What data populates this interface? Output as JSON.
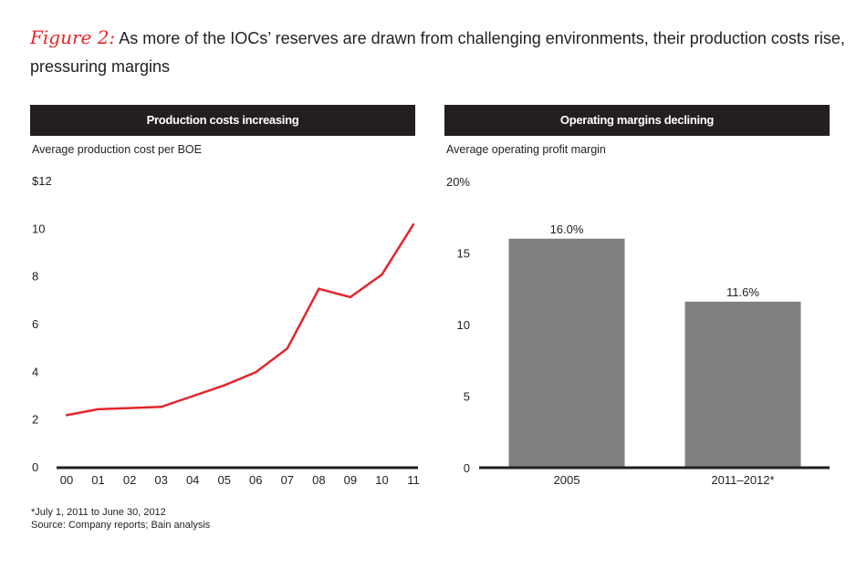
{
  "figure": {
    "label": "Figure 2:",
    "title": "As more of the IOCs’ reserves are drawn from challenging environments, their production costs rise, pressuring margins"
  },
  "chart_data": [
    {
      "type": "line",
      "header": "Production costs increasing",
      "subtitle": "Average production cost per BOE",
      "ylabel": "Average production cost per BOE",
      "x": [
        "00",
        "01",
        "02",
        "03",
        "04",
        "05",
        "06",
        "07",
        "08",
        "09",
        "10",
        "11"
      ],
      "values": [
        2.2,
        2.45,
        2.5,
        2.55,
        3.0,
        3.45,
        4.0,
        5.0,
        7.5,
        7.15,
        8.1,
        10.2
      ],
      "ylim": [
        0,
        12
      ],
      "yticks": [
        "0",
        "2",
        "4",
        "6",
        "8",
        "10",
        "$12"
      ],
      "ytick_values": [
        0,
        2,
        4,
        6,
        8,
        10,
        12
      ],
      "color": "#e3262b"
    },
    {
      "type": "bar",
      "header": "Operating margins declining",
      "subtitle": "Average operating profit margin",
      "ylabel": "Average operating profit margin",
      "categories": [
        "2005",
        "2011–2012*"
      ],
      "values": [
        16.0,
        11.6
      ],
      "labels": [
        "16.0%",
        "11.6%"
      ],
      "ylim": [
        0,
        20
      ],
      "yticks": [
        "0",
        "5",
        "10",
        "15",
        "20%"
      ],
      "ytick_values": [
        0,
        5,
        10,
        15,
        20
      ],
      "color": "#808080"
    }
  ],
  "footnotes": {
    "note": "*July 1, 2011 to June 30, 2012",
    "source": "Source: Company reports; Bain analysis"
  }
}
